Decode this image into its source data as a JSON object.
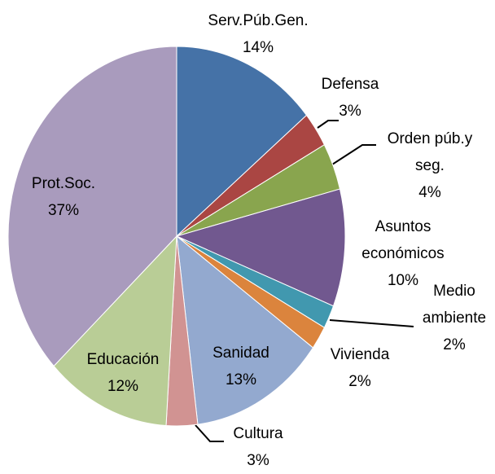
{
  "chart_data": {
    "type": "pie",
    "categories": [
      "Serv.Púb.Gen.",
      "Defensa",
      "Orden púb.y seg.",
      "Asuntos económicos",
      "Medio ambiente",
      "Vivienda",
      "Sanidad",
      "Cultura",
      "Educación",
      "Prot.Soc."
    ],
    "values": [
      14,
      3,
      4,
      10,
      2,
      2,
      13,
      3,
      12,
      37
    ],
    "value_labels": [
      "14%",
      "3%",
      "4%",
      "10%",
      "2%",
      "2%",
      "13%",
      "3%",
      "12%",
      "37%"
    ],
    "colors": [
      "#4572a7",
      "#aa4643",
      "#89a54e",
      "#71588f",
      "#4198af",
      "#db843d",
      "#93a9cf",
      "#d19392",
      "#b9cd96",
      "#a99bbd"
    ]
  }
}
